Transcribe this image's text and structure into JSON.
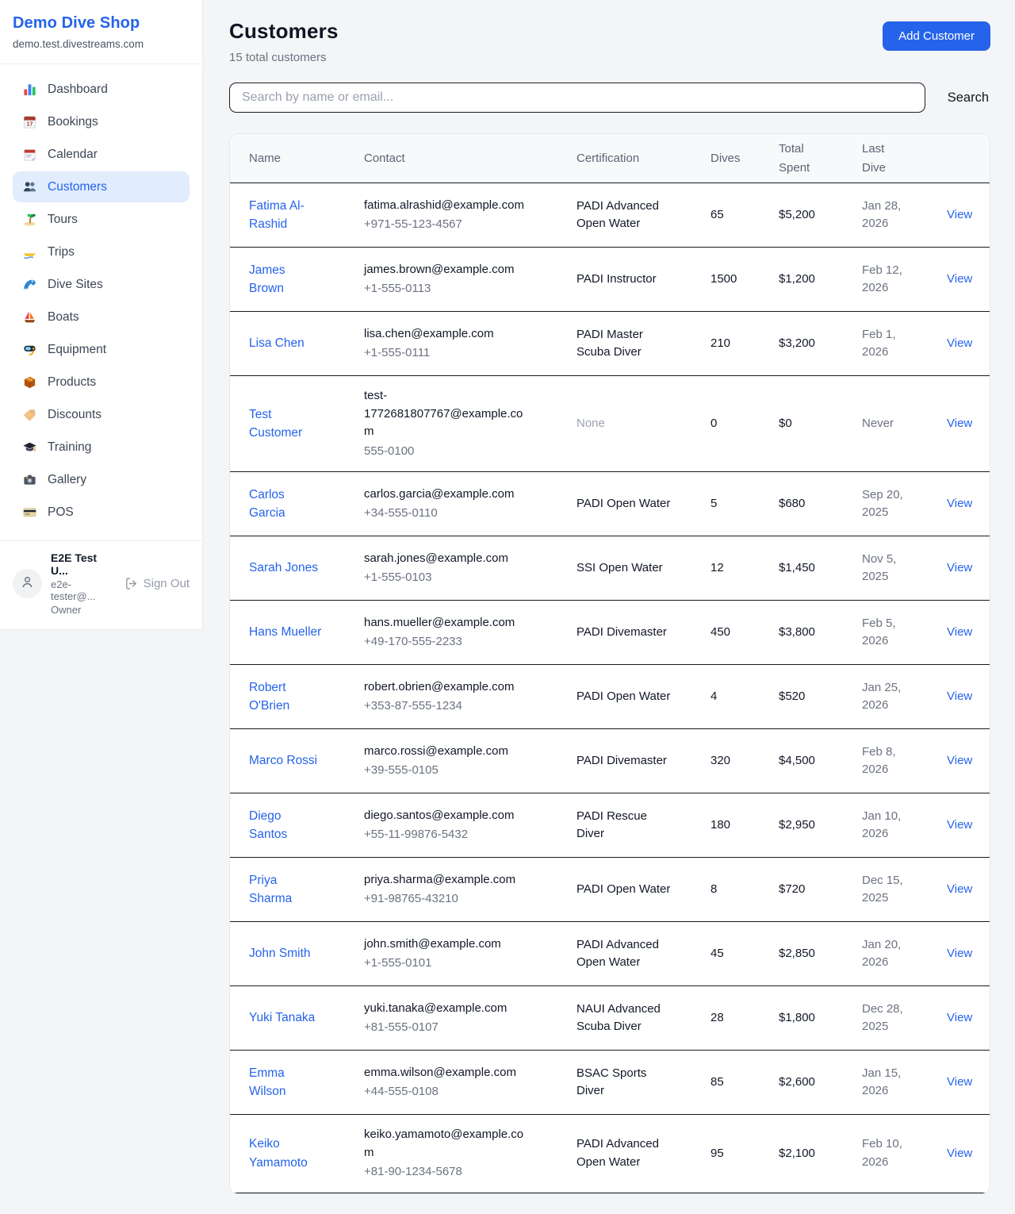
{
  "colors": {
    "accent": "#2563eb",
    "active_nav_bg": "#e1ecfd",
    "row_border": "#171a21"
  },
  "sidebar": {
    "brand": "Demo Dive Shop",
    "domain": "demo.test.divestreams.com",
    "items": [
      {
        "icon": "dashboard-icon",
        "label": "Dashboard",
        "active": false
      },
      {
        "icon": "bookings-icon",
        "label": "Bookings",
        "active": false
      },
      {
        "icon": "calendar-icon",
        "label": "Calendar",
        "active": false
      },
      {
        "icon": "customers-icon",
        "label": "Customers",
        "active": true
      },
      {
        "icon": "tours-icon",
        "label": "Tours",
        "active": false
      },
      {
        "icon": "trips-icon",
        "label": "Trips",
        "active": false
      },
      {
        "icon": "dive-sites-icon",
        "label": "Dive Sites",
        "active": false
      },
      {
        "icon": "boats-icon",
        "label": "Boats",
        "active": false
      },
      {
        "icon": "equipment-icon",
        "label": "Equipment",
        "active": false
      },
      {
        "icon": "products-icon",
        "label": "Products",
        "active": false
      },
      {
        "icon": "discounts-icon",
        "label": "Discounts",
        "active": false
      },
      {
        "icon": "training-icon",
        "label": "Training",
        "active": false
      },
      {
        "icon": "gallery-icon",
        "label": "Gallery",
        "active": false
      },
      {
        "icon": "pos-icon",
        "label": "POS",
        "active": false
      }
    ],
    "user": {
      "name": "E2E Test U...",
      "email": "e2e-tester@...",
      "role": "Owner",
      "signout_label": "Sign Out"
    }
  },
  "header": {
    "title": "Customers",
    "subtitle": "15 total customers",
    "add_button_label": "Add Customer"
  },
  "search": {
    "placeholder": "Search by name or email...",
    "button_label": "Search"
  },
  "table": {
    "columns": {
      "name": "Name",
      "contact": "Contact",
      "certification": "Certification",
      "dives": "Dives",
      "total_spent": "Total Spent",
      "last_dive": "Last Dive"
    },
    "view_label": "View",
    "rows": [
      {
        "name": "Fatima Al-Rashid",
        "email": "fatima.alrashid@example.com",
        "phone": "+971-55-123-4567",
        "cert": "PADI Advanced Open Water",
        "cert_muted": false,
        "dives": "65",
        "spent": "$5,200",
        "last": "Jan 28, 2026",
        "view": "View"
      },
      {
        "name": "James Brown",
        "email": "james.brown@example.com",
        "phone": "+1-555-0113",
        "cert": "PADI Instructor",
        "cert_muted": false,
        "dives": "1500",
        "spent": "$1,200",
        "last": "Feb 12, 2026",
        "view": "View"
      },
      {
        "name": "Lisa Chen",
        "email": "lisa.chen@example.com",
        "phone": "+1-555-0111",
        "cert": "PADI Master Scuba Diver",
        "cert_muted": false,
        "dives": "210",
        "spent": "$3,200",
        "last": "Feb 1, 2026",
        "view": "View"
      },
      {
        "name": "Test Customer",
        "email": "test-1772681807767@example.com",
        "phone": "555-0100",
        "cert": "None",
        "cert_muted": true,
        "dives": "0",
        "spent": "$0",
        "last": "Never",
        "view": "View"
      },
      {
        "name": "Carlos Garcia",
        "email": "carlos.garcia@example.com",
        "phone": "+34-555-0110",
        "cert": "PADI Open Water",
        "cert_muted": false,
        "dives": "5",
        "spent": "$680",
        "last": "Sep 20, 2025",
        "view": "View"
      },
      {
        "name": "Sarah Jones",
        "email": "sarah.jones@example.com",
        "phone": "+1-555-0103",
        "cert": "SSI Open Water",
        "cert_muted": false,
        "dives": "12",
        "spent": "$1,450",
        "last": "Nov 5, 2025",
        "view": "View"
      },
      {
        "name": "Hans Mueller",
        "email": "hans.mueller@example.com",
        "phone": "+49-170-555-2233",
        "cert": "PADI Divemaster",
        "cert_muted": false,
        "dives": "450",
        "spent": "$3,800",
        "last": "Feb 5, 2026",
        "view": "View"
      },
      {
        "name": "Robert O'Brien",
        "email": "robert.obrien@example.com",
        "phone": "+353-87-555-1234",
        "cert": "PADI Open Water",
        "cert_muted": false,
        "dives": "4",
        "spent": "$520",
        "last": "Jan 25, 2026",
        "view": "View"
      },
      {
        "name": "Marco Rossi",
        "email": "marco.rossi@example.com",
        "phone": "+39-555-0105",
        "cert": "PADI Divemaster",
        "cert_muted": false,
        "dives": "320",
        "spent": "$4,500",
        "last": "Feb 8, 2026",
        "view": "View"
      },
      {
        "name": "Diego Santos",
        "email": "diego.santos@example.com",
        "phone": "+55-11-99876-5432",
        "cert": "PADI Rescue Diver",
        "cert_muted": false,
        "dives": "180",
        "spent": "$2,950",
        "last": "Jan 10, 2026",
        "view": "View"
      },
      {
        "name": "Priya Sharma",
        "email": "priya.sharma@example.com",
        "phone": "+91-98765-43210",
        "cert": "PADI Open Water",
        "cert_muted": false,
        "dives": "8",
        "spent": "$720",
        "last": "Dec 15, 2025",
        "view": "View"
      },
      {
        "name": "John Smith",
        "email": "john.smith@example.com",
        "phone": "+1-555-0101",
        "cert": "PADI Advanced Open Water",
        "cert_muted": false,
        "dives": "45",
        "spent": "$2,850",
        "last": "Jan 20, 2026",
        "view": "View"
      },
      {
        "name": "Yuki Tanaka",
        "email": "yuki.tanaka@example.com",
        "phone": "+81-555-0107",
        "cert": "NAUI Advanced Scuba Diver",
        "cert_muted": false,
        "dives": "28",
        "spent": "$1,800",
        "last": "Dec 28, 2025",
        "view": "View"
      },
      {
        "name": "Emma Wilson",
        "email": "emma.wilson@example.com",
        "phone": "+44-555-0108",
        "cert": "BSAC Sports Diver",
        "cert_muted": false,
        "dives": "85",
        "spent": "$2,600",
        "last": "Jan 15, 2026",
        "view": "View"
      },
      {
        "name": "Keiko Yamamoto",
        "email": "keiko.yamamoto@example.com",
        "phone": "+81-90-1234-5678",
        "cert": "PADI Advanced Open Water",
        "cert_muted": false,
        "dives": "95",
        "spent": "$2,100",
        "last": "Feb 10, 2026",
        "view": "View"
      }
    ]
  }
}
